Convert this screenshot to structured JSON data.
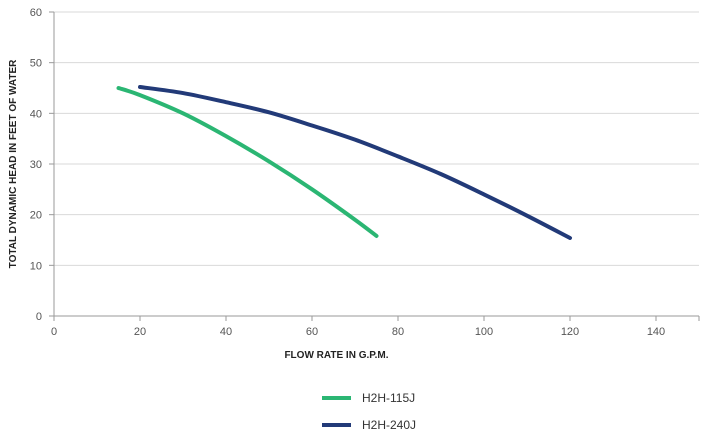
{
  "chart_data": {
    "type": "line",
    "title": "",
    "xlabel": "FLOW RATE IN G.P.M.",
    "ylabel": "TOTAL DYNAMIC HEAD IN FEET OF WATER",
    "xlim": [
      0,
      150
    ],
    "ylim": [
      0,
      60
    ],
    "xticks": [
      0,
      20,
      40,
      60,
      80,
      100,
      120,
      140
    ],
    "yticks": [
      0,
      10,
      20,
      30,
      40,
      50,
      60
    ],
    "grid": {
      "horizontal": true,
      "vertical": false
    },
    "legend_position": "bottom",
    "series": [
      {
        "name": "H2H-115J",
        "color": "#2bb673",
        "x": [
          15,
          20,
          30,
          40,
          50,
          60,
          70,
          75
        ],
        "y": [
          45,
          43.6,
          40,
          35.5,
          30.5,
          25,
          19,
          15.8
        ]
      },
      {
        "name": "H2H-240J",
        "color": "#223a78",
        "x": [
          20,
          30,
          40,
          50,
          60,
          70,
          80,
          90,
          100,
          110,
          120
        ],
        "y": [
          45.2,
          44,
          42.2,
          40.2,
          37.6,
          34.8,
          31.5,
          28,
          24,
          19.8,
          15.4
        ]
      }
    ]
  }
}
